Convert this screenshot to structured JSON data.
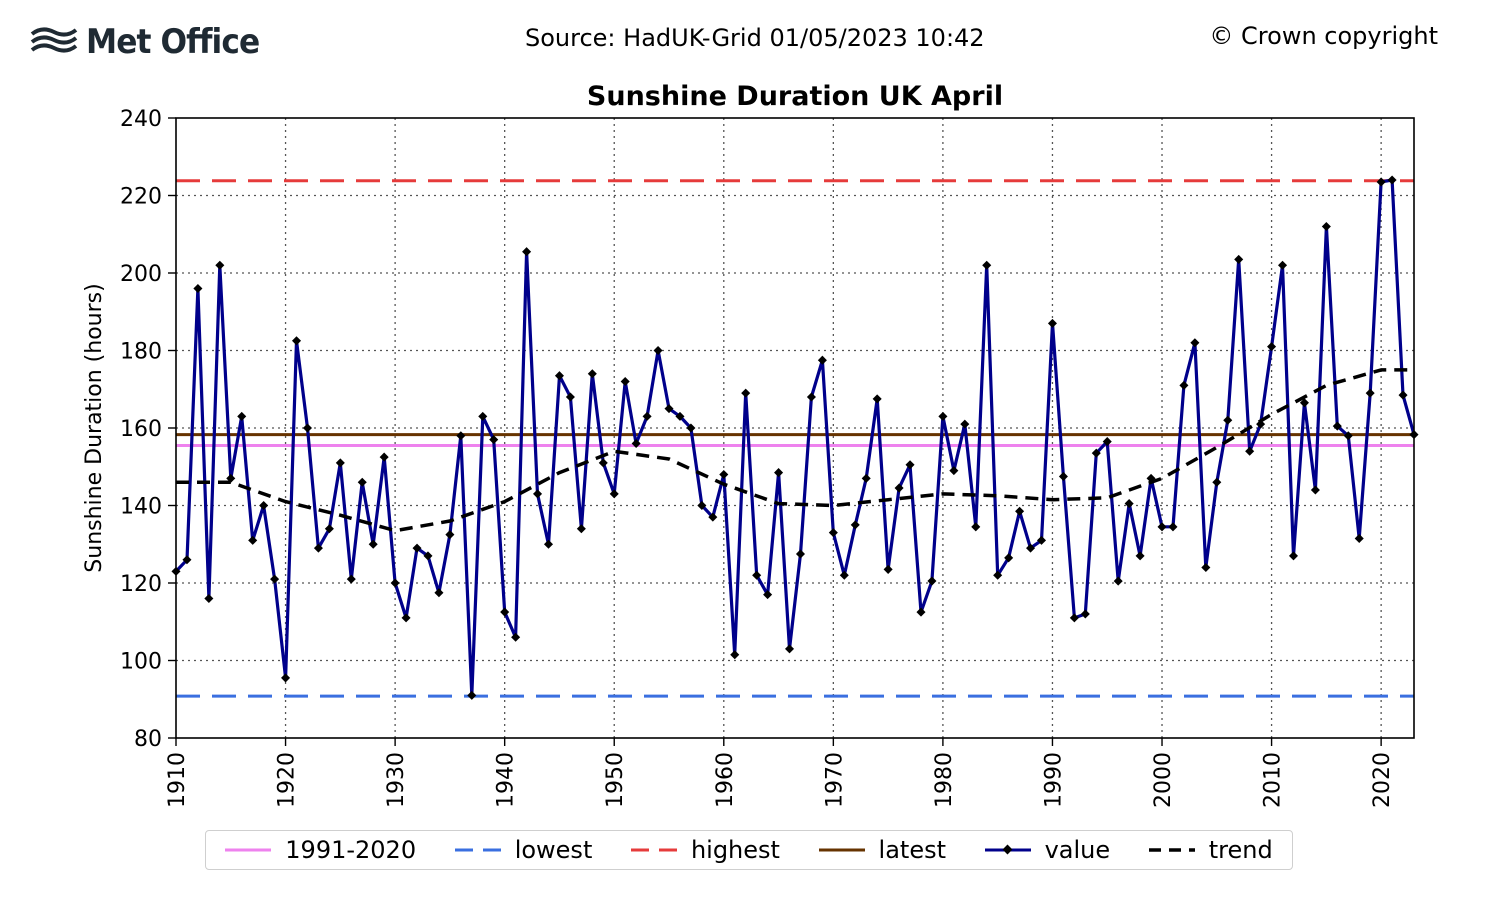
{
  "header": {
    "logo_text": "Met Office",
    "source": "Source: HadUK-Grid 01/05/2023 10:42",
    "copyright": "© Crown copyright"
  },
  "chart_data": {
    "type": "line",
    "title": "Sunshine Duration UK April",
    "xlabel": "",
    "ylabel": "Sunshine Duration (hours)",
    "xlim": [
      1910,
      2023
    ],
    "ylim": [
      80,
      240
    ],
    "xticks": [
      1910,
      1920,
      1930,
      1940,
      1950,
      1960,
      1970,
      1980,
      1990,
      2000,
      2010,
      2020
    ],
    "yticks": [
      80,
      100,
      120,
      140,
      160,
      180,
      200,
      220,
      240
    ],
    "grid": true,
    "legend_position": "bottom",
    "reference_lines": [
      {
        "name": "1991-2020",
        "value": 155.5,
        "color": "#ee82ee",
        "style": "solid"
      },
      {
        "name": "lowest",
        "value": 90.8,
        "color": "#3a6fe0",
        "style": "dashed"
      },
      {
        "name": "highest",
        "value": 223.8,
        "color": "#e63b3b",
        "style": "dashed"
      },
      {
        "name": "latest",
        "value": 158.3,
        "color": "#663300",
        "style": "solid"
      }
    ],
    "series": [
      {
        "name": "value",
        "color": "#00008b",
        "style": "solid-markers",
        "x": [
          1910,
          1911,
          1912,
          1913,
          1914,
          1915,
          1916,
          1917,
          1918,
          1919,
          1920,
          1921,
          1922,
          1923,
          1924,
          1925,
          1926,
          1927,
          1928,
          1929,
          1930,
          1931,
          1932,
          1933,
          1934,
          1935,
          1936,
          1937,
          1938,
          1939,
          1940,
          1941,
          1942,
          1943,
          1944,
          1945,
          1946,
          1947,
          1948,
          1949,
          1950,
          1951,
          1952,
          1953,
          1954,
          1955,
          1956,
          1957,
          1958,
          1959,
          1960,
          1961,
          1962,
          1963,
          1964,
          1965,
          1966,
          1967,
          1968,
          1969,
          1970,
          1971,
          1972,
          1973,
          1974,
          1975,
          1976,
          1977,
          1978,
          1979,
          1980,
          1981,
          1982,
          1983,
          1984,
          1985,
          1986,
          1987,
          1988,
          1989,
          1990,
          1991,
          1992,
          1993,
          1994,
          1995,
          1996,
          1997,
          1998,
          1999,
          2000,
          2001,
          2002,
          2003,
          2004,
          2005,
          2006,
          2007,
          2008,
          2009,
          2010,
          2011,
          2012,
          2013,
          2014,
          2015,
          2016,
          2017,
          2018,
          2019,
          2020,
          2021,
          2022,
          2023
        ],
        "values": [
          123,
          126,
          196,
          116,
          202,
          147,
          163,
          131,
          140,
          121,
          95.5,
          182.5,
          160,
          129,
          134,
          151,
          121,
          146,
          130,
          152.5,
          120,
          111,
          129,
          127,
          117.5,
          132.5,
          158,
          91,
          163,
          157,
          112.5,
          106,
          205.5,
          143,
          130,
          173.5,
          168,
          134,
          174,
          151,
          143,
          172,
          156,
          163,
          180,
          165,
          163,
          160,
          140,
          137,
          148,
          101.5,
          169,
          122,
          117,
          148.5,
          103,
          127.5,
          168,
          177.5,
          133,
          122,
          135,
          147,
          167.5,
          123.5,
          144.5,
          150.5,
          112.5,
          120.5,
          163,
          149,
          161,
          134.5,
          202,
          122,
          126.5,
          138.5,
          129,
          131,
          187,
          147.5,
          111,
          112,
          153.5,
          156.5,
          120.5,
          140.5,
          127,
          147,
          134.5,
          134.5,
          171,
          182,
          124,
          146,
          162,
          203.5,
          154,
          161,
          181,
          202,
          127,
          166.5,
          144,
          212,
          160.5,
          158,
          131.5,
          169,
          223.5,
          224,
          168.5,
          158.3
        ]
      },
      {
        "name": "trend",
        "color": "#000000",
        "style": "dashed",
        "x": [
          1910,
          1915,
          1920,
          1925,
          1930,
          1935,
          1940,
          1945,
          1950,
          1955,
          1960,
          1965,
          1970,
          1975,
          1980,
          1985,
          1990,
          1995,
          2000,
          2005,
          2010,
          2015,
          2020,
          2023
        ],
        "values": [
          146,
          146,
          141,
          137.5,
          133.5,
          136,
          141,
          148.5,
          154,
          152,
          145.5,
          140.5,
          140,
          141.5,
          143,
          142.5,
          141.5,
          142,
          147,
          155,
          163.5,
          171,
          175,
          175
        ]
      }
    ]
  }
}
